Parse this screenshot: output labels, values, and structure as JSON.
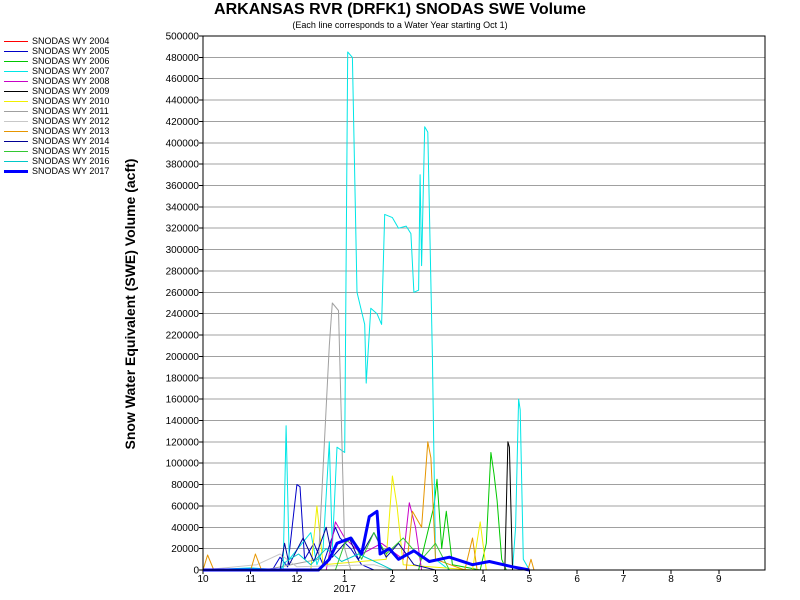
{
  "chart_data": {
    "type": "line",
    "title": "ARKANSAS RVR (DRFK1) SNODAS SWE Volume",
    "subtitle": "(Each line corresponds to a Water Year starting Oct 1)",
    "ylabel": "Snow Water Equivalent (SWE) Volume (acft)",
    "xlabel": "",
    "xlim": [
      "2016-10-01",
      "2017-09-30"
    ],
    "ylim": [
      0,
      500000
    ],
    "y_ticks": [
      0,
      20000,
      40000,
      60000,
      80000,
      100000,
      120000,
      140000,
      160000,
      180000,
      200000,
      220000,
      240000,
      260000,
      280000,
      300000,
      320000,
      340000,
      360000,
      380000,
      400000,
      420000,
      440000,
      460000,
      480000,
      500000
    ],
    "x_ticks": [
      {
        "date": "2016-10-01",
        "label": "10"
      },
      {
        "date": "2016-11-01",
        "label": "11"
      },
      {
        "date": "2016-12-01",
        "label": "12"
      },
      {
        "date": "2017-01-01",
        "label": "1"
      },
      {
        "date": "2017-02-01",
        "label": "2"
      },
      {
        "date": "2017-03-01",
        "label": "3"
      },
      {
        "date": "2017-04-01",
        "label": "4"
      },
      {
        "date": "2017-05-01",
        "label": "5"
      },
      {
        "date": "2017-06-01",
        "label": "6"
      },
      {
        "date": "2017-07-01",
        "label": "7"
      },
      {
        "date": "2017-08-01",
        "label": "8"
      },
      {
        "date": "2017-09-01",
        "label": "9"
      }
    ],
    "year_label": {
      "date": "2017-01-01",
      "label": "2017"
    },
    "grid": true,
    "legend_position": "left",
    "series": [
      {
        "name": "SNODAS WY 2004",
        "color": "#ff0000",
        "width": 1,
        "points": []
      },
      {
        "name": "SNODAS WY 2005",
        "color": "#0000c8",
        "width": 1,
        "points": [
          [
            "2016-11-15",
            0
          ],
          [
            "2016-11-20",
            12000
          ],
          [
            "2016-11-25",
            3000
          ],
          [
            "2016-12-01",
            80000
          ],
          [
            "2016-12-03",
            78000
          ],
          [
            "2016-12-06",
            10000
          ],
          [
            "2016-12-12",
            25000
          ],
          [
            "2016-12-18",
            5000
          ],
          [
            "2016-12-26",
            40000
          ],
          [
            "2016-12-29",
            30000
          ],
          [
            "2017-01-05",
            20000
          ],
          [
            "2017-01-12",
            5000
          ],
          [
            "2017-01-20",
            0
          ]
        ]
      },
      {
        "name": "SNODAS WY 2006",
        "color": "#00c800",
        "width": 1,
        "points": [
          [
            "2017-02-18",
            0
          ],
          [
            "2017-02-28",
            60000
          ],
          [
            "2017-03-02",
            85000
          ],
          [
            "2017-03-05",
            20000
          ],
          [
            "2017-03-08",
            55000
          ],
          [
            "2017-03-12",
            5000
          ],
          [
            "2017-03-30",
            0
          ],
          [
            "2017-04-03",
            25000
          ],
          [
            "2017-04-06",
            110000
          ],
          [
            "2017-04-08",
            90000
          ],
          [
            "2017-04-10",
            65000
          ],
          [
            "2017-04-13",
            10000
          ],
          [
            "2017-04-16",
            0
          ]
        ]
      },
      {
        "name": "SNODAS WY 2007",
        "color": "#00e6e6",
        "width": 1,
        "points": [
          [
            "2016-10-01",
            0
          ],
          [
            "2016-11-01",
            2000
          ],
          [
            "2016-11-22",
            0
          ],
          [
            "2016-11-24",
            135000
          ],
          [
            "2016-11-26",
            10000
          ],
          [
            "2016-12-10",
            35000
          ],
          [
            "2016-12-14",
            5000
          ],
          [
            "2016-12-18",
            20000
          ],
          [
            "2016-12-22",
            120000
          ],
          [
            "2016-12-24",
            20000
          ],
          [
            "2016-12-27",
            115000
          ],
          [
            "2017-01-01",
            110000
          ],
          [
            "2017-01-03",
            485000
          ],
          [
            "2017-01-06",
            480000
          ],
          [
            "2017-01-09",
            260000
          ],
          [
            "2017-01-14",
            230000
          ],
          [
            "2017-01-15",
            175000
          ],
          [
            "2017-01-18",
            245000
          ],
          [
            "2017-01-22",
            240000
          ],
          [
            "2017-01-25",
            230000
          ],
          [
            "2017-01-27",
            333000
          ],
          [
            "2017-02-01",
            330000
          ],
          [
            "2017-02-05",
            320000
          ],
          [
            "2017-02-10",
            322000
          ],
          [
            "2017-02-13",
            315000
          ],
          [
            "2017-02-15",
            260000
          ],
          [
            "2017-02-18",
            262000
          ],
          [
            "2017-02-19",
            370000
          ],
          [
            "2017-02-20",
            285000
          ],
          [
            "2017-02-22",
            415000
          ],
          [
            "2017-02-24",
            410000
          ],
          [
            "2017-02-27",
            200000
          ],
          [
            "2017-03-01",
            10000
          ],
          [
            "2017-03-10",
            0
          ],
          [
            "2017-04-20",
            0
          ],
          [
            "2017-04-22",
            40000
          ],
          [
            "2017-04-24",
            160000
          ],
          [
            "2017-04-25",
            150000
          ],
          [
            "2017-04-27",
            10000
          ],
          [
            "2017-05-01",
            0
          ]
        ]
      },
      {
        "name": "SNODAS WY 2008",
        "color": "#c800c8",
        "width": 1,
        "points": [
          [
            "2016-12-20",
            0
          ],
          [
            "2016-12-26",
            45000
          ],
          [
            "2017-01-01",
            30000
          ],
          [
            "2017-01-12",
            15000
          ],
          [
            "2017-01-25",
            25000
          ],
          [
            "2017-02-08",
            10000
          ],
          [
            "2017-02-12",
            63000
          ],
          [
            "2017-02-16",
            40000
          ],
          [
            "2017-02-20",
            0
          ]
        ]
      },
      {
        "name": "SNODAS WY 2009",
        "color": "#000000",
        "width": 1,
        "points": [
          [
            "2017-04-15",
            0
          ],
          [
            "2017-04-17",
            120000
          ],
          [
            "2017-04-18",
            115000
          ],
          [
            "2017-04-20",
            0
          ]
        ]
      },
      {
        "name": "SNODAS WY 2010",
        "color": "#f0f000",
        "width": 1,
        "points": [
          [
            "2016-12-10",
            0
          ],
          [
            "2016-12-14",
            60000
          ],
          [
            "2016-12-18",
            5000
          ],
          [
            "2017-01-28",
            10000
          ],
          [
            "2017-02-01",
            88000
          ],
          [
            "2017-02-04",
            60000
          ],
          [
            "2017-02-08",
            5000
          ],
          [
            "2017-03-25",
            0
          ],
          [
            "2017-03-30",
            45000
          ],
          [
            "2017-04-03",
            0
          ]
        ]
      },
      {
        "name": "SNODAS WY 2011",
        "color": "#a0a0a0",
        "width": 1,
        "points": [
          [
            "2016-11-10",
            0
          ],
          [
            "2016-12-15",
            10000
          ],
          [
            "2016-12-22",
            210000
          ],
          [
            "2016-12-24",
            250000
          ],
          [
            "2016-12-28",
            243000
          ],
          [
            "2017-01-01",
            20000
          ],
          [
            "2017-01-05",
            0
          ]
        ]
      },
      {
        "name": "SNODAS WY 2012",
        "color": "#c8c8c8",
        "width": 1,
        "points": [
          [
            "2016-10-01",
            0
          ],
          [
            "2016-11-05",
            5000
          ],
          [
            "2016-11-20",
            15000
          ],
          [
            "2016-12-01",
            3000
          ],
          [
            "2017-01-20",
            5000
          ],
          [
            "2017-02-01",
            0
          ]
        ]
      },
      {
        "name": "SNODAS WY 2013",
        "color": "#e69600",
        "width": 1,
        "points": [
          [
            "2016-10-01",
            0
          ],
          [
            "2016-10-04",
            14000
          ],
          [
            "2016-10-08",
            0
          ],
          [
            "2016-11-01",
            0
          ],
          [
            "2016-11-04",
            15000
          ],
          [
            "2016-11-08",
            0
          ],
          [
            "2017-02-10",
            0
          ],
          [
            "2017-02-14",
            55000
          ],
          [
            "2017-02-20",
            40000
          ],
          [
            "2017-02-24",
            120000
          ],
          [
            "2017-02-26",
            105000
          ],
          [
            "2017-03-01",
            10000
          ],
          [
            "2017-03-20",
            0
          ],
          [
            "2017-03-25",
            30000
          ],
          [
            "2017-03-28",
            0
          ],
          [
            "2017-04-30",
            0
          ],
          [
            "2017-05-02",
            10000
          ],
          [
            "2017-05-04",
            0
          ]
        ]
      },
      {
        "name": "SNODAS WY 2014",
        "color": "#000096",
        "width": 1,
        "points": [
          [
            "2016-11-20",
            0
          ],
          [
            "2016-11-23",
            25000
          ],
          [
            "2016-11-26",
            5000
          ],
          [
            "2016-12-05",
            30000
          ],
          [
            "2016-12-12",
            8000
          ],
          [
            "2016-12-20",
            40000
          ],
          [
            "2016-12-24",
            12000
          ],
          [
            "2017-01-04",
            30000
          ],
          [
            "2017-01-10",
            10000
          ],
          [
            "2017-01-20",
            35000
          ],
          [
            "2017-01-28",
            12000
          ],
          [
            "2017-02-05",
            25000
          ],
          [
            "2017-02-15",
            5000
          ],
          [
            "2017-03-01",
            0
          ]
        ]
      },
      {
        "name": "SNODAS WY 2015",
        "color": "#32c832",
        "width": 1,
        "points": [
          [
            "2016-12-26",
            0
          ],
          [
            "2017-01-01",
            25000
          ],
          [
            "2017-01-06",
            30000
          ],
          [
            "2017-01-12",
            10000
          ],
          [
            "2017-01-20",
            35000
          ],
          [
            "2017-01-28",
            15000
          ],
          [
            "2017-02-08",
            30000
          ],
          [
            "2017-02-20",
            10000
          ],
          [
            "2017-03-01",
            25000
          ],
          [
            "2017-03-10",
            0
          ]
        ]
      },
      {
        "name": "SNODAS WY 2016",
        "color": "#00c8c8",
        "width": 1,
        "points": [
          [
            "2016-11-20",
            0
          ],
          [
            "2016-11-24",
            8000
          ],
          [
            "2016-12-02",
            15000
          ],
          [
            "2016-12-10",
            5000
          ],
          [
            "2016-12-20",
            20000
          ],
          [
            "2016-12-30",
            8000
          ],
          [
            "2017-01-10",
            15000
          ],
          [
            "2017-01-25",
            5000
          ],
          [
            "2017-02-01",
            0
          ]
        ]
      },
      {
        "name": "SNODAS WY 2017",
        "color": "#0000ff",
        "width": 3,
        "points": [
          [
            "2016-10-01",
            0
          ],
          [
            "2016-12-15",
            0
          ],
          [
            "2016-12-22",
            10000
          ],
          [
            "2016-12-27",
            25000
          ],
          [
            "2017-01-05",
            30000
          ],
          [
            "2017-01-12",
            15000
          ],
          [
            "2017-01-17",
            50000
          ],
          [
            "2017-01-22",
            55000
          ],
          [
            "2017-01-24",
            15000
          ],
          [
            "2017-01-30",
            20000
          ],
          [
            "2017-02-05",
            10000
          ],
          [
            "2017-02-15",
            18000
          ],
          [
            "2017-02-25",
            8000
          ],
          [
            "2017-03-10",
            12000
          ],
          [
            "2017-03-25",
            5000
          ],
          [
            "2017-04-05",
            8000
          ],
          [
            "2017-04-20",
            3000
          ],
          [
            "2017-05-01",
            0
          ]
        ]
      }
    ]
  }
}
